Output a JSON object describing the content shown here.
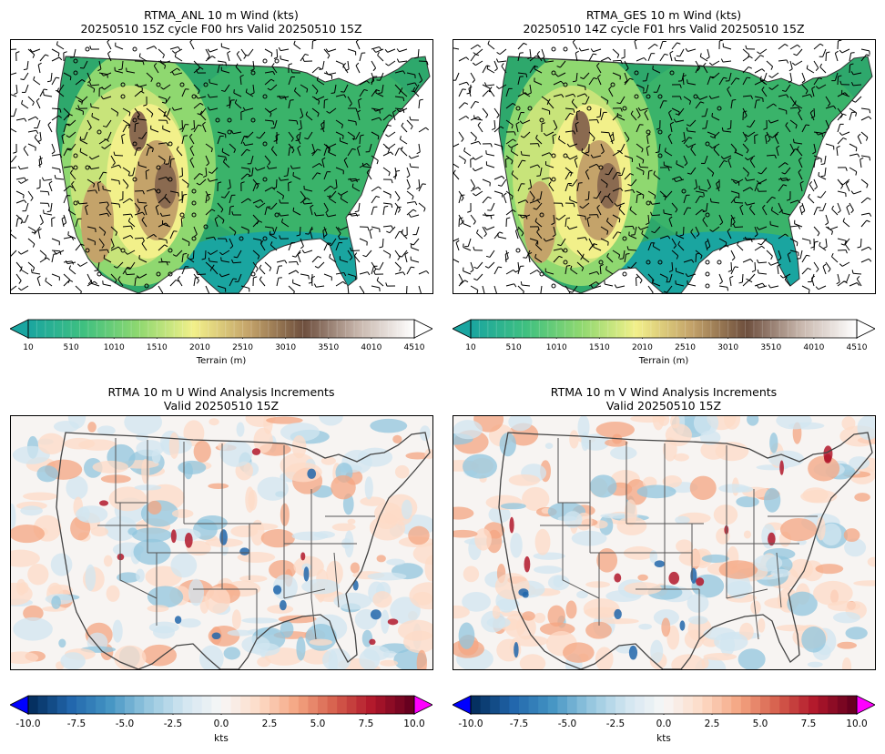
{
  "panels": [
    {
      "title_line1": "RTMA_ANL 10 m Wind (kts)",
      "title_line2": "20250510 15Z cycle F00 hrs Valid 20250510 15Z"
    },
    {
      "title_line1": "RTMA_GES 10 m Wind (kts)",
      "title_line2": "20250510 14Z cycle F01 hrs Valid 20250510 15Z"
    },
    {
      "title_line1": "RTMA 10 m U Wind Analysis Increments",
      "title_line2": "Valid 20250510 15Z"
    },
    {
      "title_line1": "RTMA 10 m V Wind Analysis Increments",
      "title_line2": "Valid 20250510 15Z"
    }
  ],
  "terrain_colorbar": {
    "label": "Terrain (m)",
    "ticks": [
      "10",
      "510",
      "1010",
      "1510",
      "2010",
      "2510",
      "3010",
      "3510",
      "4010",
      "4510"
    ],
    "colors": [
      "#1aa5a0",
      "#3fc080",
      "#8fd870",
      "#f2f08a",
      "#c4a36a",
      "#6e4f3e",
      "#c9b8ae",
      "#ffffff"
    ]
  },
  "increment_colorbar": {
    "label": "kts",
    "ticks": [
      "-10.0",
      "-7.5",
      "-5.0",
      "-2.5",
      "0.0",
      "2.5",
      "5.0",
      "7.5",
      "10.0"
    ],
    "under_color": "#0000ff",
    "over_color": "#ff00ff",
    "colors": [
      "#053061",
      "#2166ac",
      "#4393c3",
      "#92c5de",
      "#d1e5f0",
      "#f7f7f7",
      "#fddbc7",
      "#f4a582",
      "#d6604d",
      "#b2182b",
      "#67001f"
    ]
  }
}
